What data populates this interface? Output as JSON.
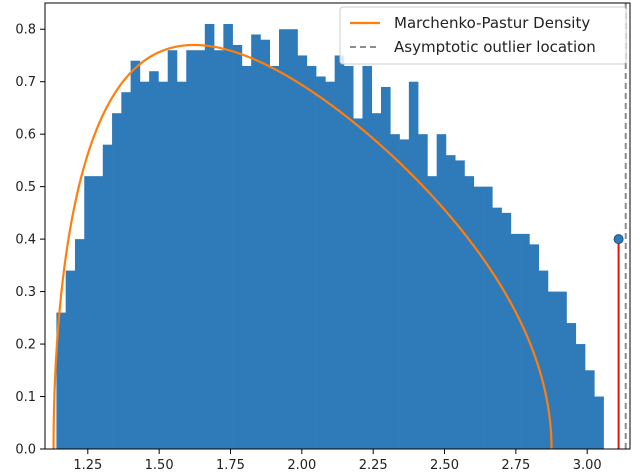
{
  "chart_data": {
    "type": "bar",
    "title": "",
    "xlabel": "",
    "ylabel": "",
    "xlim": [
      1.1,
      3.15
    ],
    "ylim": [
      0,
      0.85
    ],
    "x_ticks": [
      1.25,
      1.5,
      1.75,
      2.0,
      2.25,
      2.5,
      2.75,
      3.0
    ],
    "x_tick_labels": [
      "1.25",
      "1.50",
      "1.75",
      "2.00",
      "2.25",
      "2.50",
      "2.75",
      "3.00"
    ],
    "y_ticks": [
      0.0,
      0.1,
      0.2,
      0.3,
      0.4,
      0.5,
      0.6,
      0.7,
      0.8
    ],
    "y_tick_labels": [
      "0.0",
      "0.1",
      "0.2",
      "0.3",
      "0.4",
      "0.5",
      "0.6",
      "0.7",
      "0.8"
    ],
    "histogram": {
      "bin_start": 1.14,
      "bin_width": 0.0325,
      "color": "#2f7ab9",
      "heights": [
        0.26,
        0.34,
        0.4,
        0.52,
        0.52,
        0.58,
        0.64,
        0.68,
        0.74,
        0.7,
        0.72,
        0.7,
        0.76,
        0.7,
        0.76,
        0.76,
        0.81,
        0.76,
        0.81,
        0.77,
        0.73,
        0.79,
        0.78,
        0.73,
        0.8,
        0.8,
        0.75,
        0.73,
        0.71,
        0.7,
        0.75,
        0.73,
        0.63,
        0.73,
        0.64,
        0.69,
        0.6,
        0.59,
        0.7,
        0.6,
        0.52,
        0.6,
        0.56,
        0.55,
        0.52,
        0.5,
        0.5,
        0.46,
        0.45,
        0.41,
        0.41,
        0.39,
        0.34,
        0.3,
        0.3,
        0.24,
        0.2,
        0.15,
        0.1
      ]
    },
    "series": [
      {
        "name": "Marchenko-Pastur Density",
        "type": "line",
        "color": "#ff7f0e",
        "lambda_min": 1.13,
        "lambda_max": 2.875,
        "peak": 0.77
      }
    ],
    "outlier": {
      "x": 3.11,
      "y": 0.4,
      "stem_color": "#e3120b",
      "marker_color": "#2f7ab9"
    },
    "asymptote": {
      "name": "Asymptotic outlier location",
      "x": 3.135,
      "color": "#8c8c8c",
      "style": "dashed"
    },
    "legend": {
      "placement": "top-right",
      "entries": [
        "Marchenko-Pastur Density",
        "Asymptotic outlier location"
      ]
    },
    "grid": false
  }
}
